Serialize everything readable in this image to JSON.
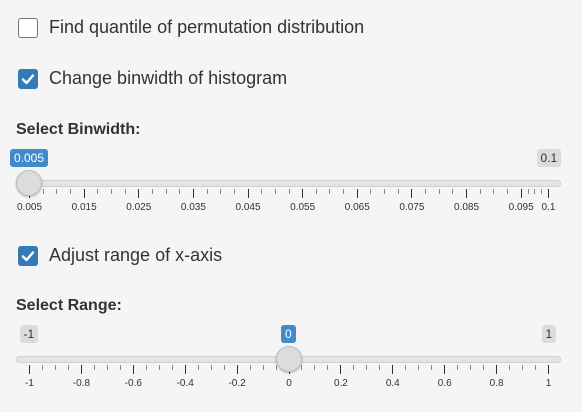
{
  "options": {
    "quantile": {
      "label": "Find quantile of permutation distribution",
      "checked": false
    },
    "binwidth": {
      "label": "Change binwidth of histogram",
      "checked": true
    },
    "xrange": {
      "label": "Adjust range of x-axis",
      "checked": true
    }
  },
  "binwidth_slider": {
    "label": "Select Binwidth:",
    "min": 0.005,
    "max": 0.1,
    "value": 0.005,
    "value_label": "0.005",
    "min_label": "0.005",
    "max_label": "0.1",
    "ticks": [
      "0.005",
      "0.015",
      "0.025",
      "0.035",
      "0.045",
      "0.055",
      "0.065",
      "0.075",
      "0.085",
      "0.095",
      "0.1"
    ],
    "tick_values": [
      0.005,
      0.015,
      0.025,
      0.035,
      0.045,
      0.055,
      0.065,
      0.075,
      0.085,
      0.095,
      0.1
    ]
  },
  "range_slider": {
    "label": "Select Range:",
    "min": -1,
    "max": 1,
    "value": 0,
    "value_label": "0",
    "min_label": "-1",
    "max_label": "1",
    "ticks": [
      "-1",
      "-0.8",
      "-0.6",
      "-0.4",
      "-0.2",
      "0",
      "0.2",
      "0.4",
      "0.6",
      "0.8",
      "1"
    ],
    "tick_values": [
      -1,
      -0.8,
      -0.6,
      -0.4,
      -0.2,
      0,
      0.2,
      0.4,
      0.6,
      0.8,
      1
    ]
  },
  "colors": {
    "accent": "#337ab7",
    "bubble": "#428bca"
  }
}
